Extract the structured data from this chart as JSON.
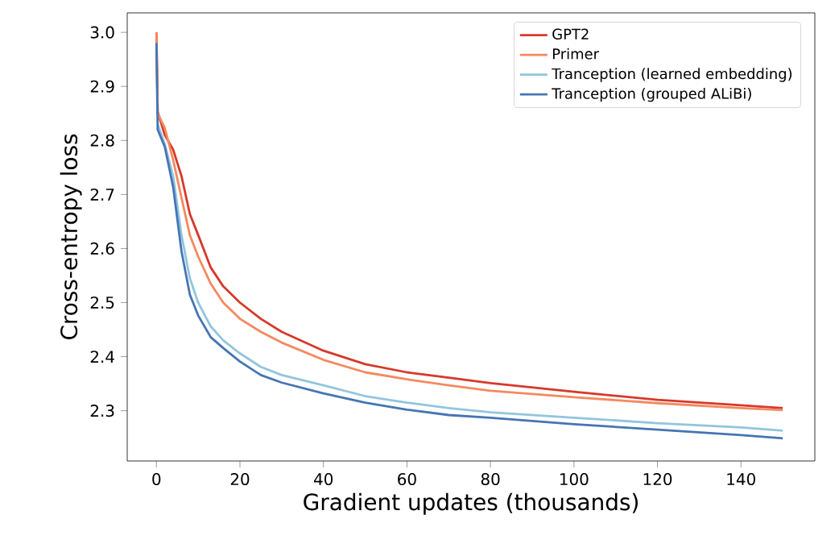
{
  "chart_data": {
    "type": "line",
    "xlabel": "Gradient updates (thousands)",
    "ylabel": "Cross-entropy loss",
    "x": [
      0,
      0.3,
      2,
      4,
      6,
      8,
      10,
      13,
      16,
      20,
      25,
      30,
      40,
      50,
      60,
      70,
      80,
      100,
      120,
      140,
      150
    ],
    "series": [
      {
        "name": "GPT2",
        "color": "#d6392b",
        "values": [
          3.0,
          2.853,
          2.81,
          2.783,
          2.734,
          2.664,
          2.625,
          2.565,
          2.53,
          2.5,
          2.47,
          2.446,
          2.411,
          2.386,
          2.371,
          2.361,
          2.351,
          2.335,
          2.32,
          2.31,
          2.305
        ]
      },
      {
        "name": "Primer",
        "color": "#f4895f",
        "values": [
          3.0,
          2.85,
          2.823,
          2.764,
          2.694,
          2.625,
          2.585,
          2.535,
          2.5,
          2.47,
          2.446,
          2.426,
          2.394,
          2.371,
          2.358,
          2.347,
          2.337,
          2.325,
          2.314,
          2.305,
          2.301
        ]
      },
      {
        "name": "Tranception (learned embedding)",
        "color": "#92c5de",
        "values": [
          null,
          2.83,
          2.793,
          2.734,
          2.625,
          2.545,
          2.5,
          2.456,
          2.43,
          2.406,
          2.381,
          2.366,
          2.347,
          2.327,
          2.315,
          2.305,
          2.297,
          2.287,
          2.277,
          2.269,
          2.263
        ]
      },
      {
        "name": "Tranception (grouped ALiBi)",
        "color": "#4575b4",
        "values": [
          2.98,
          2.82,
          2.788,
          2.714,
          2.595,
          2.515,
          2.476,
          2.436,
          2.416,
          2.391,
          2.366,
          2.352,
          2.332,
          2.315,
          2.302,
          2.292,
          2.287,
          2.275,
          2.265,
          2.255,
          2.249
        ]
      }
    ],
    "xlim": [
      -7,
      157.7
    ],
    "ylim": [
      2.207,
      3.036
    ],
    "xticks": [
      0,
      20,
      40,
      60,
      80,
      100,
      120,
      140
    ],
    "yticks": [
      2.3,
      2.4,
      2.5,
      2.6,
      2.7,
      2.8,
      2.9,
      {
        "value": 3.0,
        "label": "3.0"
      }
    ],
    "grid": false,
    "legend": "top right",
    "marker": "none",
    "line_style": "solid"
  }
}
